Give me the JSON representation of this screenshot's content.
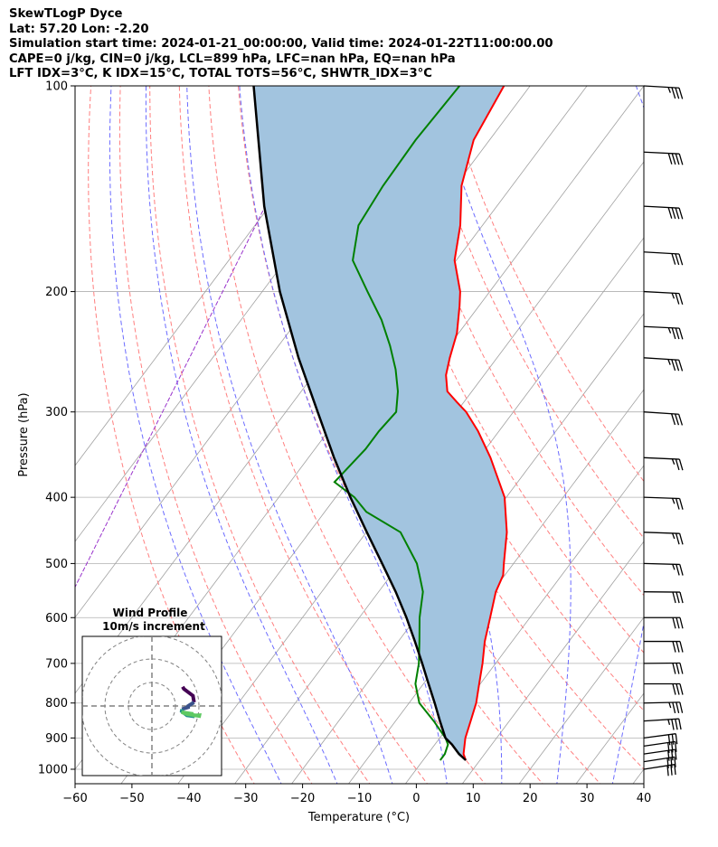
{
  "header": {
    "title": "SkewTLogP Dyce",
    "location": "Lat: 57.20   Lon: -2.20",
    "times": "Simulation start time: 2024-01-21_00:00:00, Valid time: 2024-01-22T11:00:00.00",
    "indices1": "CAPE=0 j/kg, CIN=0 j/kg, LCL=899 hPa, LFC=nan hPa, EQ=nan hPa",
    "indices2": "LFT IDX=3°C, K IDX=15°C, TOTAL TOTS=56°C, SHWTR_IDX=3°C"
  },
  "chart_data": {
    "type": "skew-t log-p",
    "xlabel": "Temperature (°C)",
    "ylabel": "Pressure (hPa)",
    "xlim": [
      -60,
      40
    ],
    "ylim": [
      1050,
      100
    ],
    "skew_deg_per_log_decade": 90,
    "x_ticks": [
      -60,
      -50,
      -40,
      -30,
      -20,
      -10,
      0,
      10,
      20,
      30,
      40
    ],
    "x_tick_labels": [
      "−60",
      "−50",
      "−40",
      "−30",
      "−20",
      "−10",
      "0",
      "10",
      "20",
      "30",
      "40"
    ],
    "y_ticks": [
      1000,
      900,
      800,
      700,
      600,
      500,
      400,
      300,
      200,
      100
    ],
    "y_tick_labels": [
      "1000",
      "900",
      "800",
      "700",
      "600",
      "500",
      "400",
      "300",
      "200",
      "100"
    ],
    "isotherms": [
      -100,
      -90,
      -80,
      -70,
      -60,
      -50,
      -40,
      -30,
      -20,
      -10,
      0,
      10,
      20,
      30,
      40,
      50
    ],
    "dry_adiabats_C": [
      -30,
      -20,
      -10,
      0,
      10,
      20,
      30,
      40,
      50,
      60,
      70,
      80,
      90
    ],
    "moist_adiabats_C": [
      -25,
      -15,
      -5,
      5,
      15,
      25,
      35
    ],
    "mixing_ratio_C_at_1000": [
      -38
    ],
    "temperature": {
      "pressure": [
        970,
        950,
        900,
        850,
        800,
        750,
        700,
        650,
        600,
        550,
        520,
        500,
        450,
        400,
        350,
        320,
        300,
        290,
        280,
        265,
        250,
        230,
        210,
        200,
        180,
        160,
        140,
        120,
        100
      ],
      "temp_C": [
        7.5,
        6.3,
        4.5,
        3.2,
        1.8,
        -0.2,
        -2.3,
        -4.8,
        -7.0,
        -9.4,
        -10.3,
        -11.7,
        -15.3,
        -20.3,
        -28.0,
        -33.7,
        -38.3,
        -41.3,
        -44.3,
        -46.7,
        -48.3,
        -50.3,
        -53.4,
        -55.2,
        -60.3,
        -63.9,
        -68.9,
        -72.8,
        -74.6
      ]
    },
    "dewpoint": {
      "pressure": [
        970,
        950,
        920,
        900,
        850,
        800,
        750,
        700,
        650,
        600,
        550,
        520,
        500,
        450,
        420,
        400,
        380,
        340,
        320,
        300,
        280,
        260,
        240,
        220,
        200,
        180,
        160,
        140,
        120,
        100
      ],
      "dewpoint_C": [
        3.0,
        3.0,
        2.3,
        1.0,
        -3.3,
        -8.2,
        -11.4,
        -13.5,
        -16.3,
        -19.4,
        -22.2,
        -25.0,
        -27.0,
        -34.0,
        -42.7,
        -46.7,
        -52.2,
        -51.1,
        -51.1,
        -50.6,
        -53.0,
        -56.3,
        -60.4,
        -65.3,
        -71.5,
        -78.2,
        -81.8,
        -82.7,
        -83.0,
        -82.4
      ]
    },
    "parcel": {
      "pressure": [
        970,
        950,
        920,
        900,
        850,
        800,
        750,
        700,
        650,
        600,
        550,
        500,
        450,
        400,
        350,
        300,
        250,
        200,
        150,
        100
      ],
      "temp_C": [
        7.5,
        5.5,
        3.0,
        1.0,
        -2.2,
        -5.5,
        -9.1,
        -12.9,
        -17.1,
        -21.7,
        -27.0,
        -33.1,
        -39.9,
        -47.4,
        -55.5,
        -64.4,
        -74.9,
        -86.9,
        -100.9,
        -118.6
      ]
    },
    "wind_barbs": {
      "pressure": [
        1000,
        975,
        950,
        925,
        900,
        850,
        800,
        750,
        700,
        650,
        600,
        550,
        500,
        450,
        400,
        350,
        300,
        250,
        225,
        200,
        175,
        150,
        125,
        100
      ],
      "speed_kt": [
        30,
        30,
        30,
        30,
        30,
        35,
        35,
        30,
        30,
        30,
        30,
        30,
        25,
        25,
        25,
        25,
        30,
        35,
        35,
        25,
        30,
        40,
        40,
        35
      ],
      "direction_deg": [
        238,
        238,
        240,
        240,
        242,
        256,
        265,
        270,
        268,
        270,
        270,
        272,
        276,
        278,
        278,
        280,
        285,
        284,
        281,
        282,
        283,
        282,
        281,
        283
      ]
    },
    "inset": {
      "title": "Wind Profile",
      "subtitle": "10m/s increment",
      "rings_ms": [
        10,
        20,
        30
      ],
      "hodograph_colors": [
        "#440154",
        "#3b528b",
        "#21918c",
        "#5ec962"
      ]
    },
    "colors": {
      "temperature": "#ff0000",
      "dewpoint": "#008000",
      "parcel": "#000000",
      "shade": "#a2c4df",
      "isotherm": "#a0a0a0",
      "dry_adiabat": "#ff7f7f",
      "moist_adiabat": "#6b6bff",
      "mixing_ratio": "#9933cc",
      "grid": "#b0b0b0"
    }
  }
}
